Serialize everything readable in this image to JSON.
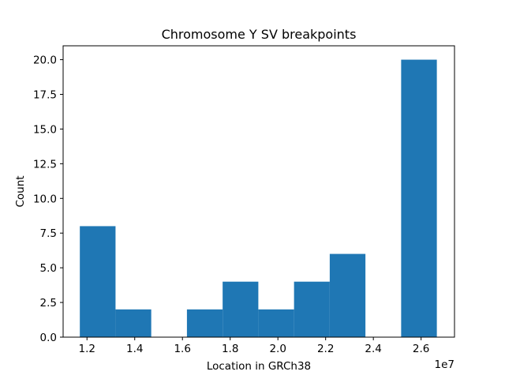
{
  "chart_data": {
    "type": "histogram",
    "title": "Chromosome Y SV breakpoints",
    "xlabel": "Location in GRCh38",
    "ylabel": "Count",
    "x_offset_text": "1e7",
    "x_scale": 10000000,
    "bin_edges": [
      11700000,
      13196000,
      14692000,
      16188000,
      17684000,
      19180000,
      20676000,
      22172000,
      23668000,
      25164000,
      26660000
    ],
    "counts": [
      8,
      2,
      0,
      2,
      4,
      2,
      4,
      6,
      0,
      20
    ],
    "xlim": [
      11000000,
      27400000
    ],
    "ylim": [
      0,
      21
    ],
    "x_ticks": [
      12000000,
      14000000,
      16000000,
      18000000,
      20000000,
      22000000,
      24000000,
      26000000
    ],
    "x_tick_labels": [
      "1.2",
      "1.4",
      "1.6",
      "1.8",
      "2.0",
      "2.2",
      "2.4",
      "2.6"
    ],
    "y_ticks": [
      0,
      2.5,
      5,
      7.5,
      10,
      12.5,
      15,
      17.5,
      20
    ],
    "y_tick_labels": [
      "0.0",
      "2.5",
      "5.0",
      "7.5",
      "10.0",
      "12.5",
      "15.0",
      "17.5",
      "20.0"
    ],
    "bar_color": "#1f77b4",
    "grid": false,
    "legend": "none"
  }
}
